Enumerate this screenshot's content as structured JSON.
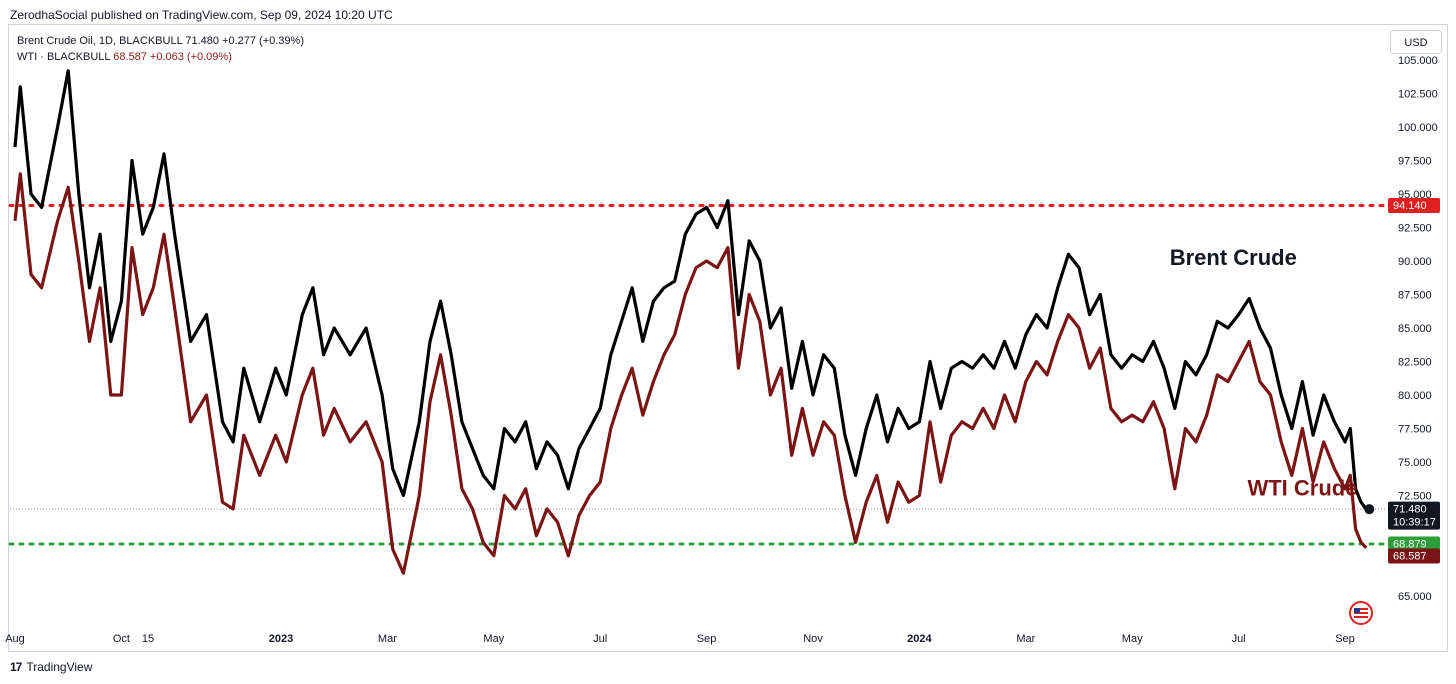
{
  "publisher": "ZerodhaSocial published on TradingView.com, Sep 09, 2024 10:20 UTC",
  "legend": {
    "brent": {
      "name": "Brent Crude Oil, 1D, BLACKBULL",
      "values": "71.480 +0.277 (+0.39%)"
    },
    "wti": {
      "name": "WTI",
      "separator": " · ",
      "exchange": "BLACKBULL",
      "values": "68.587 +0.063 (+0.09%)"
    }
  },
  "currency_button": "USD",
  "footer": {
    "logo_glyph": "17",
    "brand": "TradingView"
  },
  "colors": {
    "brent": "#000000",
    "wti": "#7b1414",
    "resistance": "#e02020",
    "support": "#2e9e3a"
  },
  "chart_data": {
    "type": "line",
    "title": "",
    "x_ticks": [
      {
        "label": "Aug",
        "t": 0.0,
        "bold": false
      },
      {
        "label": "Oct",
        "t": 2.0,
        "bold": false
      },
      {
        "label": "15",
        "t": 2.5,
        "bold": false
      },
      {
        "label": "2023",
        "t": 5.0,
        "bold": true
      },
      {
        "label": "Mar",
        "t": 7.0,
        "bold": false
      },
      {
        "label": "May",
        "t": 9.0,
        "bold": false
      },
      {
        "label": "Jul",
        "t": 11.0,
        "bold": false
      },
      {
        "label": "Sep",
        "t": 13.0,
        "bold": false
      },
      {
        "label": "Nov",
        "t": 15.0,
        "bold": false
      },
      {
        "label": "2024",
        "t": 17.0,
        "bold": true
      },
      {
        "label": "Mar",
        "t": 19.0,
        "bold": false
      },
      {
        "label": "May",
        "t": 21.0,
        "bold": false
      },
      {
        "label": "Jul",
        "t": 23.0,
        "bold": false
      },
      {
        "label": "Sep",
        "t": 25.0,
        "bold": false
      }
    ],
    "y_ticks": [
      "105.000",
      "102.500",
      "100.000",
      "97.500",
      "95.000",
      "92.500",
      "90.000",
      "87.500",
      "85.000",
      "82.500",
      "80.000",
      "77.500",
      "75.000",
      "72.500",
      "65.000"
    ],
    "ylim": [
      63.5,
      106.5
    ],
    "series": [
      {
        "name": "Brent Crude",
        "points": [
          [
            0.0,
            98.5
          ],
          [
            0.1,
            103.0
          ],
          [
            0.3,
            95.0
          ],
          [
            0.5,
            94.0
          ],
          [
            0.8,
            100.0
          ],
          [
            1.0,
            104.2
          ],
          [
            1.2,
            95.0
          ],
          [
            1.4,
            88.0
          ],
          [
            1.6,
            92.0
          ],
          [
            1.8,
            84.0
          ],
          [
            2.0,
            87.0
          ],
          [
            2.2,
            97.5
          ],
          [
            2.4,
            92.0
          ],
          [
            2.6,
            94.0
          ],
          [
            2.8,
            98.0
          ],
          [
            3.0,
            92.0
          ],
          [
            3.3,
            84.0
          ],
          [
            3.6,
            86.0
          ],
          [
            3.9,
            78.0
          ],
          [
            4.1,
            76.5
          ],
          [
            4.3,
            82.0
          ],
          [
            4.6,
            78.0
          ],
          [
            4.9,
            82.0
          ],
          [
            5.1,
            80.0
          ],
          [
            5.4,
            86.0
          ],
          [
            5.6,
            88.0
          ],
          [
            5.8,
            83.0
          ],
          [
            6.0,
            85.0
          ],
          [
            6.3,
            83.0
          ],
          [
            6.6,
            85.0
          ],
          [
            6.9,
            80.0
          ],
          [
            7.1,
            74.5
          ],
          [
            7.3,
            72.5
          ],
          [
            7.6,
            78.0
          ],
          [
            7.8,
            84.0
          ],
          [
            8.0,
            87.0
          ],
          [
            8.2,
            83.0
          ],
          [
            8.4,
            78.0
          ],
          [
            8.6,
            76.0
          ],
          [
            8.8,
            74.0
          ],
          [
            9.0,
            73.0
          ],
          [
            9.2,
            77.5
          ],
          [
            9.4,
            76.5
          ],
          [
            9.6,
            78.0
          ],
          [
            9.8,
            74.5
          ],
          [
            10.0,
            76.5
          ],
          [
            10.2,
            75.5
          ],
          [
            10.4,
            73.0
          ],
          [
            10.6,
            76.0
          ],
          [
            10.8,
            77.5
          ],
          [
            11.0,
            79.0
          ],
          [
            11.2,
            83.0
          ],
          [
            11.4,
            85.5
          ],
          [
            11.6,
            88.0
          ],
          [
            11.8,
            84.0
          ],
          [
            12.0,
            87.0
          ],
          [
            12.2,
            88.0
          ],
          [
            12.4,
            88.5
          ],
          [
            12.6,
            92.0
          ],
          [
            12.8,
            93.5
          ],
          [
            13.0,
            94.0
          ],
          [
            13.2,
            92.5
          ],
          [
            13.4,
            94.5
          ],
          [
            13.6,
            86.0
          ],
          [
            13.8,
            91.5
          ],
          [
            14.0,
            90.0
          ],
          [
            14.2,
            85.0
          ],
          [
            14.4,
            86.5
          ],
          [
            14.6,
            80.5
          ],
          [
            14.8,
            84.0
          ],
          [
            15.0,
            80.0
          ],
          [
            15.2,
            83.0
          ],
          [
            15.4,
            82.0
          ],
          [
            15.6,
            77.0
          ],
          [
            15.8,
            74.0
          ],
          [
            16.0,
            77.5
          ],
          [
            16.2,
            80.0
          ],
          [
            16.4,
            76.5
          ],
          [
            16.6,
            79.0
          ],
          [
            16.8,
            77.5
          ],
          [
            17.0,
            78.0
          ],
          [
            17.2,
            82.5
          ],
          [
            17.4,
            79.0
          ],
          [
            17.6,
            82.0
          ],
          [
            17.8,
            82.5
          ],
          [
            18.0,
            82.0
          ],
          [
            18.2,
            83.0
          ],
          [
            18.4,
            82.0
          ],
          [
            18.6,
            84.0
          ],
          [
            18.8,
            82.0
          ],
          [
            19.0,
            84.5
          ],
          [
            19.2,
            86.0
          ],
          [
            19.4,
            85.0
          ],
          [
            19.6,
            88.0
          ],
          [
            19.8,
            90.5
          ],
          [
            20.0,
            89.5
          ],
          [
            20.2,
            86.0
          ],
          [
            20.4,
            87.5
          ],
          [
            20.6,
            83.0
          ],
          [
            20.8,
            82.0
          ],
          [
            21.0,
            83.0
          ],
          [
            21.2,
            82.5
          ],
          [
            21.4,
            84.0
          ],
          [
            21.6,
            82.0
          ],
          [
            21.8,
            79.0
          ],
          [
            22.0,
            82.5
          ],
          [
            22.2,
            81.5
          ],
          [
            22.4,
            83.0
          ],
          [
            22.6,
            85.5
          ],
          [
            22.8,
            85.0
          ],
          [
            23.0,
            86.0
          ],
          [
            23.2,
            87.2
          ],
          [
            23.4,
            85.0
          ],
          [
            23.6,
            83.5
          ],
          [
            23.8,
            80.0
          ],
          [
            24.0,
            77.5
          ],
          [
            24.2,
            81.0
          ],
          [
            24.4,
            77.0
          ],
          [
            24.6,
            80.0
          ],
          [
            24.8,
            78.0
          ],
          [
            25.0,
            76.5
          ],
          [
            25.1,
            77.5
          ],
          [
            25.2,
            73.0
          ],
          [
            25.3,
            72.0
          ],
          [
            25.4,
            71.48
          ]
        ]
      },
      {
        "name": "WTI Crude",
        "points": [
          [
            0.0,
            93.0
          ],
          [
            0.1,
            96.5
          ],
          [
            0.3,
            89.0
          ],
          [
            0.5,
            88.0
          ],
          [
            0.8,
            93.0
          ],
          [
            1.0,
            95.5
          ],
          [
            1.2,
            90.0
          ],
          [
            1.4,
            84.0
          ],
          [
            1.6,
            88.0
          ],
          [
            1.8,
            80.0
          ],
          [
            2.0,
            80.0
          ],
          [
            2.2,
            91.0
          ],
          [
            2.4,
            86.0
          ],
          [
            2.6,
            88.0
          ],
          [
            2.8,
            92.0
          ],
          [
            3.0,
            86.5
          ],
          [
            3.3,
            78.0
          ],
          [
            3.6,
            80.0
          ],
          [
            3.9,
            72.0
          ],
          [
            4.1,
            71.5
          ],
          [
            4.3,
            77.0
          ],
          [
            4.6,
            74.0
          ],
          [
            4.9,
            77.0
          ],
          [
            5.1,
            75.0
          ],
          [
            5.4,
            80.0
          ],
          [
            5.6,
            82.0
          ],
          [
            5.8,
            77.0
          ],
          [
            6.0,
            79.0
          ],
          [
            6.3,
            76.5
          ],
          [
            6.6,
            78.0
          ],
          [
            6.9,
            75.0
          ],
          [
            7.1,
            68.5
          ],
          [
            7.3,
            66.7
          ],
          [
            7.6,
            72.5
          ],
          [
            7.8,
            79.5
          ],
          [
            8.0,
            83.0
          ],
          [
            8.2,
            78.5
          ],
          [
            8.4,
            73.0
          ],
          [
            8.6,
            71.5
          ],
          [
            8.8,
            69.0
          ],
          [
            9.0,
            68.0
          ],
          [
            9.2,
            72.5
          ],
          [
            9.4,
            71.5
          ],
          [
            9.6,
            73.0
          ],
          [
            9.8,
            69.5
          ],
          [
            10.0,
            71.5
          ],
          [
            10.2,
            70.5
          ],
          [
            10.4,
            68.0
          ],
          [
            10.6,
            71.0
          ],
          [
            10.8,
            72.5
          ],
          [
            11.0,
            73.5
          ],
          [
            11.2,
            77.5
          ],
          [
            11.4,
            80.0
          ],
          [
            11.6,
            82.0
          ],
          [
            11.8,
            78.5
          ],
          [
            12.0,
            81.0
          ],
          [
            12.2,
            83.0
          ],
          [
            12.4,
            84.5
          ],
          [
            12.6,
            87.5
          ],
          [
            12.8,
            89.5
          ],
          [
            13.0,
            90.0
          ],
          [
            13.2,
            89.5
          ],
          [
            13.4,
            91.0
          ],
          [
            13.6,
            82.0
          ],
          [
            13.8,
            87.5
          ],
          [
            14.0,
            85.5
          ],
          [
            14.2,
            80.0
          ],
          [
            14.4,
            82.0
          ],
          [
            14.6,
            75.5
          ],
          [
            14.8,
            79.0
          ],
          [
            15.0,
            75.5
          ],
          [
            15.2,
            78.0
          ],
          [
            15.4,
            77.0
          ],
          [
            15.6,
            72.5
          ],
          [
            15.8,
            69.0
          ],
          [
            16.0,
            72.0
          ],
          [
            16.2,
            74.0
          ],
          [
            16.4,
            70.5
          ],
          [
            16.6,
            73.5
          ],
          [
            16.8,
            72.0
          ],
          [
            17.0,
            72.5
          ],
          [
            17.2,
            78.0
          ],
          [
            17.4,
            73.5
          ],
          [
            17.6,
            77.0
          ],
          [
            17.8,
            78.0
          ],
          [
            18.0,
            77.5
          ],
          [
            18.2,
            79.0
          ],
          [
            18.4,
            77.5
          ],
          [
            18.6,
            80.0
          ],
          [
            18.8,
            78.0
          ],
          [
            19.0,
            81.0
          ],
          [
            19.2,
            82.5
          ],
          [
            19.4,
            81.5
          ],
          [
            19.6,
            84.0
          ],
          [
            19.8,
            86.0
          ],
          [
            20.0,
            85.0
          ],
          [
            20.2,
            82.0
          ],
          [
            20.4,
            83.5
          ],
          [
            20.6,
            79.0
          ],
          [
            20.8,
            78.0
          ],
          [
            21.0,
            78.5
          ],
          [
            21.2,
            78.0
          ],
          [
            21.4,
            79.5
          ],
          [
            21.6,
            77.5
          ],
          [
            21.8,
            73.0
          ],
          [
            22.0,
            77.5
          ],
          [
            22.2,
            76.5
          ],
          [
            22.4,
            78.5
          ],
          [
            22.6,
            81.5
          ],
          [
            22.8,
            81.0
          ],
          [
            23.0,
            82.5
          ],
          [
            23.2,
            84.0
          ],
          [
            23.4,
            81.0
          ],
          [
            23.6,
            80.0
          ],
          [
            23.8,
            76.5
          ],
          [
            24.0,
            74.0
          ],
          [
            24.2,
            77.5
          ],
          [
            24.4,
            73.5
          ],
          [
            24.6,
            76.5
          ],
          [
            24.8,
            74.5
          ],
          [
            25.0,
            73.0
          ],
          [
            25.1,
            74.0
          ],
          [
            25.2,
            70.0
          ],
          [
            25.3,
            69.0
          ],
          [
            25.4,
            68.587
          ]
        ]
      }
    ],
    "horizontal_lines": [
      {
        "value": 94.14,
        "label": "94.140",
        "style": "dotted",
        "color": "#e02020"
      },
      {
        "value": 68.879,
        "label": "68.879",
        "style": "dotted",
        "color": "#2e9e3a"
      }
    ],
    "price_tags": [
      {
        "series": "Brent Crude",
        "label": "71.480",
        "sub": "10:39:17",
        "value": 71.48
      },
      {
        "series": "WTI Crude",
        "label": "68.587",
        "value": 68.587
      }
    ],
    "annotations": [
      {
        "text": "Brent Crude",
        "series": "Brent Crude",
        "at_t": 22.9,
        "at_value": 89.7
      },
      {
        "text": "WTI Crude",
        "series": "WTI Crude",
        "at_t": 24.2,
        "at_value": 72.5
      }
    ]
  }
}
